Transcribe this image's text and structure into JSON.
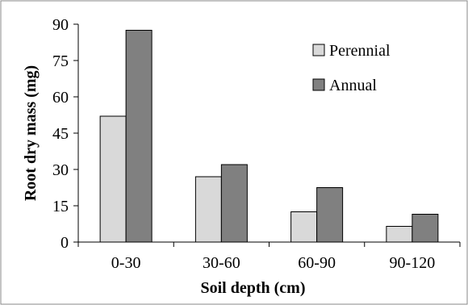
{
  "chart_data": {
    "type": "bar",
    "title": "",
    "xlabel": "Soil depth  (cm)",
    "ylabel": "Root dry mass (mg)",
    "categories": [
      "0-30",
      "30-60",
      "60-90",
      "90-120"
    ],
    "series": [
      {
        "name": "Perennial",
        "values": [
          52,
          27,
          12.5,
          6.5
        ],
        "color": "#d9d9d9"
      },
      {
        "name": "Annual",
        "values": [
          87.5,
          32,
          22.5,
          11.5
        ],
        "color": "#808080"
      }
    ],
    "ylim": [
      0,
      90
    ],
    "yticks": [
      0,
      15,
      30,
      45,
      60,
      75,
      90
    ],
    "grid": false,
    "legend_position": "top-right"
  }
}
